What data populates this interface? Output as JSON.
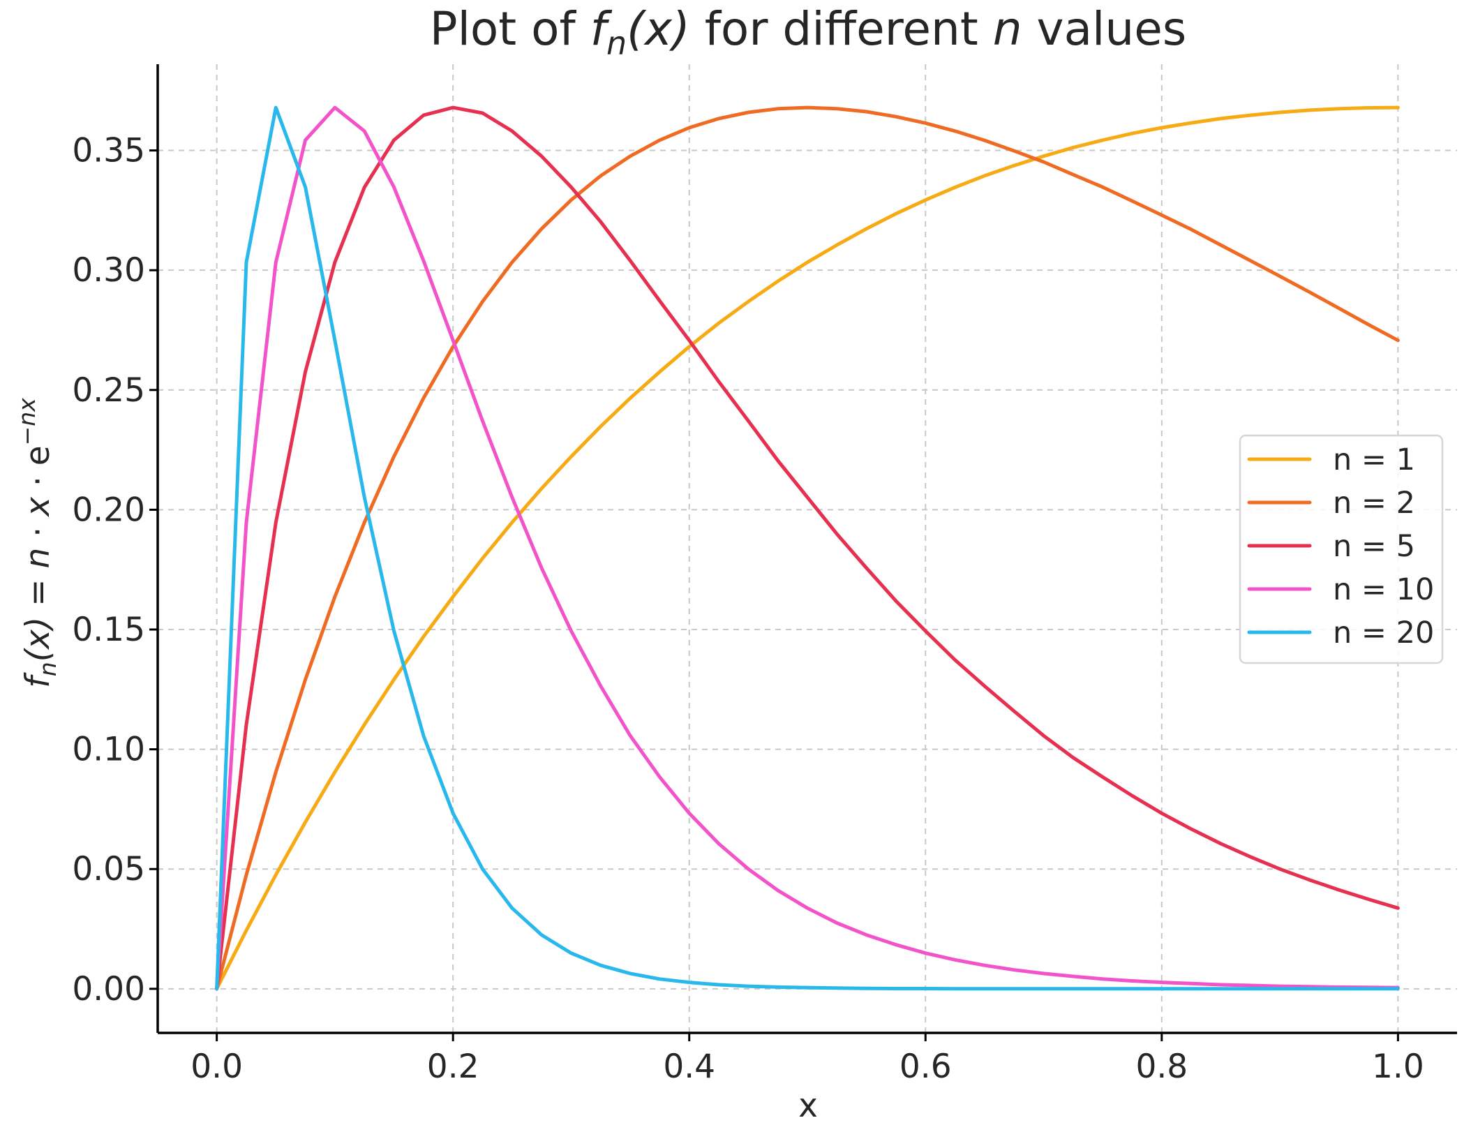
{
  "chart_data": {
    "type": "line",
    "title": {
      "prefix": "Plot of ",
      "func": "f",
      "func_sub": "n",
      "func_arg": "(x)",
      "middle": " for different ",
      "var": "n",
      "suffix": " values"
    },
    "xlabel": "x",
    "ylabel": {
      "func": "f",
      "func_sub": "n",
      "func_arg": "(x)",
      "equals": " = ",
      "n": "n",
      "dot1": " · ",
      "x": "x",
      "dot2": " · ",
      "e": "e",
      "exponent": "−nx"
    },
    "xlim": [
      -0.05,
      1.05
    ],
    "ylim": [
      -0.0184,
      0.386
    ],
    "x_ticks": [
      0.0,
      0.2,
      0.4,
      0.6,
      0.8,
      1.0
    ],
    "x_tick_labels": [
      "0.0",
      "0.2",
      "0.4",
      "0.6",
      "0.8",
      "1.0"
    ],
    "y_ticks": [
      0.0,
      0.05,
      0.1,
      0.15,
      0.2,
      0.25,
      0.3,
      0.35
    ],
    "y_tick_labels": [
      "0.00",
      "0.05",
      "0.10",
      "0.15",
      "0.20",
      "0.25",
      "0.30",
      "0.35"
    ],
    "grid": true,
    "legend_position": "center-right",
    "x": [
      0.0,
      0.025,
      0.05,
      0.075,
      0.1,
      0.125,
      0.15,
      0.175,
      0.2,
      0.225,
      0.25,
      0.275,
      0.3,
      0.325,
      0.35,
      0.375,
      0.4,
      0.425,
      0.45,
      0.475,
      0.5,
      0.525,
      0.55,
      0.575,
      0.6,
      0.625,
      0.65,
      0.675,
      0.7,
      0.725,
      0.75,
      0.775,
      0.8,
      0.825,
      0.85,
      0.875,
      0.9,
      0.925,
      0.95,
      0.975,
      1.0
    ],
    "series": [
      {
        "name": "n = 1",
        "color": "#f6aa14",
        "values": [
          0.0,
          0.0244,
          0.0476,
          0.0696,
          0.0905,
          0.1103,
          0.1291,
          0.147,
          0.1637,
          0.1797,
          0.1947,
          0.2089,
          0.2222,
          0.2348,
          0.2466,
          0.2576,
          0.2681,
          0.2779,
          0.2869,
          0.2954,
          0.3033,
          0.3105,
          0.3173,
          0.3236,
          0.3293,
          0.3346,
          0.3394,
          0.3437,
          0.3476,
          0.3512,
          0.3543,
          0.3571,
          0.3595,
          0.3615,
          0.3633,
          0.3647,
          0.3659,
          0.3668,
          0.3674,
          0.3678,
          0.3679
        ]
      },
      {
        "name": "n = 2",
        "color": "#ef6b23",
        "values": [
          0.0,
          0.0476,
          0.0905,
          0.1291,
          0.1637,
          0.1947,
          0.2222,
          0.2466,
          0.2681,
          0.2869,
          0.3033,
          0.3173,
          0.3293,
          0.3394,
          0.3476,
          0.3543,
          0.3595,
          0.3633,
          0.3659,
          0.3674,
          0.3679,
          0.3674,
          0.3662,
          0.3641,
          0.3614,
          0.3581,
          0.3542,
          0.3498,
          0.3452,
          0.3399,
          0.3347,
          0.3289,
          0.323,
          0.317,
          0.3105,
          0.304,
          0.2975,
          0.2909,
          0.2841,
          0.2773,
          0.2707
        ]
      },
      {
        "name": "n = 5",
        "color": "#e6304f",
        "values": [
          0.0,
          0.1103,
          0.1947,
          0.2576,
          0.3033,
          0.3346,
          0.3543,
          0.3647,
          0.3679,
          0.3656,
          0.3581,
          0.3476,
          0.3347,
          0.3202,
          0.304,
          0.2872,
          0.2707,
          0.2535,
          0.2371,
          0.2205,
          0.2052,
          0.1899,
          0.1757,
          0.1619,
          0.1494,
          0.1373,
          0.1264,
          0.1159,
          0.1057,
          0.0965,
          0.0884,
          0.0806,
          0.0733,
          0.0667,
          0.0606,
          0.0551,
          0.05,
          0.0455,
          0.0413,
          0.0374,
          0.0337
        ]
      },
      {
        "name": "n = 10",
        "color": "#f253c8",
        "values": [
          0.0,
          0.1947,
          0.3033,
          0.3543,
          0.3679,
          0.3581,
          0.3347,
          0.304,
          0.2707,
          0.2371,
          0.2052,
          0.1757,
          0.1494,
          0.1264,
          0.1057,
          0.0884,
          0.0733,
          0.0606,
          0.05,
          0.0411,
          0.0337,
          0.0275,
          0.0225,
          0.0184,
          0.0149,
          0.0121,
          0.0098,
          0.0079,
          0.0064,
          0.0052,
          0.0041,
          0.0033,
          0.0027,
          0.0022,
          0.0017,
          0.0014,
          0.0011,
          0.0009,
          0.0007,
          0.0006,
          0.0005
        ]
      },
      {
        "name": "n = 20",
        "color": "#28b8ec",
        "values": [
          0.0,
          0.3033,
          0.3679,
          0.3347,
          0.2707,
          0.2052,
          0.1494,
          0.1057,
          0.0733,
          0.05,
          0.0337,
          0.0225,
          0.0149,
          0.0098,
          0.0064,
          0.0041,
          0.0027,
          0.0017,
          0.0011,
          0.0007,
          0.0005,
          0.0003,
          0.0002,
          0.0001,
          0.0001,
          0.0,
          0.0,
          0.0,
          0.0,
          0.0,
          0.0,
          0.0,
          0.0,
          0.0,
          0.0,
          0.0,
          0.0,
          0.0,
          0.0,
          0.0,
          0.0
        ]
      }
    ]
  }
}
